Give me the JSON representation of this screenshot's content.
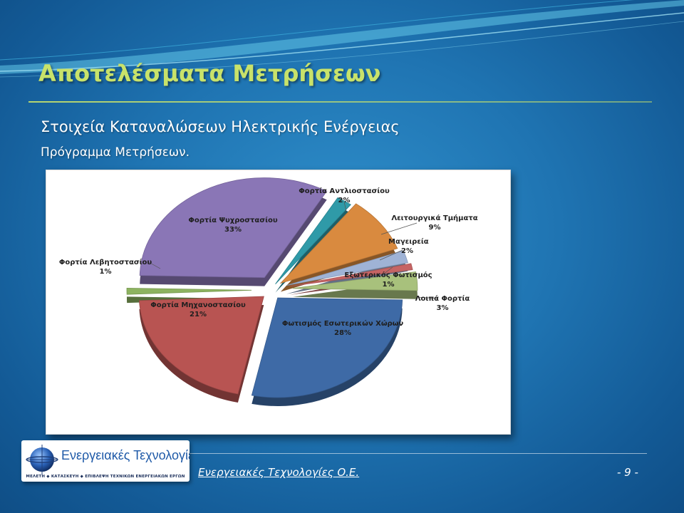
{
  "slide": {
    "title": "Αποτελέσματα Μετρήσεων",
    "subtitle_1": "Στοιχεία Καταναλώσεων Ηλεκτρικής Ενέργειας",
    "subtitle_2": "Πρόγραμμα Μετρήσεων."
  },
  "footer": {
    "company": "Ενεργειακές Τεχνολογίες Ο.Ε.",
    "page": "- 9 -"
  },
  "logo": {
    "name": "Ενεργειακές Τεχνολογίες",
    "tagline": "ΜΕΛΕΤΗ ◆ ΚΑΤΑΣΚΕΥΗ ◆ ΕΠΙΒΛΕΨΗ ΤΕΧΝΙΚΩΝ ΕΝΕΡΓΕΙΑΚΩΝ ΕΡΓΩΝ"
  },
  "chart_data": {
    "type": "pie",
    "title": "",
    "style": "3d-exploded",
    "slices": [
      {
        "label": "Φορτία Αντλιοστασίου",
        "value": 2,
        "value_label": "2%",
        "color": "#2f9aa8"
      },
      {
        "label": "Λειτουργικά Τμήματα",
        "value": 9,
        "value_label": "9%",
        "color": "#d98a3f"
      },
      {
        "label": "Μαγειρεία",
        "value": 2,
        "value_label": "2%",
        "color": "#9fb3d6"
      },
      {
        "label": "Εξωτερικός Φωτισμός",
        "value": 1,
        "value_label": "1%",
        "color": "#c66464"
      },
      {
        "label": "Λοιπά Φορτία",
        "value": 3,
        "value_label": "3%",
        "color": "#a8c17c"
      },
      {
        "label": "Φωτισμός Εσωτερικών Χώρων",
        "value": 28,
        "value_label": "28%",
        "color": "#3e6aa6"
      },
      {
        "label": "Φορτία Μηχανοστασίου",
        "value": 21,
        "value_label": "21%",
        "color": "#b85452"
      },
      {
        "label": "Φορτία Λεβητοστασίου",
        "value": 1,
        "value_label": "1%",
        "color": "#8db360"
      },
      {
        "label": "Φορτία Ψυχροστασίου",
        "value": 33,
        "value_label": "33%",
        "color": "#8a76b6"
      }
    ]
  }
}
